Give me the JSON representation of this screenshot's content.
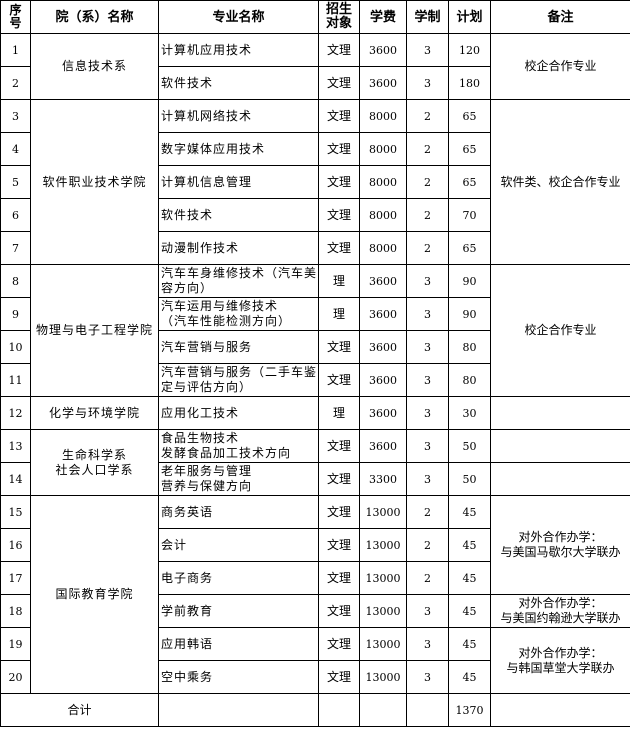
{
  "headers": [
    "序号",
    "院（系）名称",
    "专业名称",
    "招生对象",
    "学费",
    "学制",
    "计划",
    "备注"
  ],
  "departments": [
    {
      "name": "信息技术系",
      "rows": 2
    },
    {
      "name": "软件职业技术学院",
      "rows": 5
    },
    {
      "name": "物理与电子工程学院",
      "rows": 4
    },
    {
      "name": "化学与环境学院",
      "rows": 1
    },
    {
      "name": "生命科学系\n社会人口学系",
      "rows": 2
    },
    {
      "name": "国际教育学院",
      "rows": 6
    }
  ],
  "remarks": [
    {
      "text": "校企合作专业",
      "rows": 2
    },
    {
      "text": "软件类、校企合作专业",
      "rows": 5
    },
    {
      "text": "校企合作专业",
      "rows": 4
    },
    {
      "text": "",
      "rows": 1
    },
    {
      "text": "",
      "rows": 1
    },
    {
      "text": "",
      "rows": 1
    },
    {
      "text": "对外合作办学：\n与美国马歇尔大学联办",
      "rows": 3
    },
    {
      "text": "对外合作办学：\n与美国约翰逊大学联办",
      "rows": 1
    },
    {
      "text": "对外合作办学：\n与韩国草堂大学联办",
      "rows": 2
    }
  ],
  "rows": [
    {
      "no": "1",
      "major": "计算机应用技术",
      "target": "文理",
      "fee": "3600",
      "years": "3",
      "plan": "120"
    },
    {
      "no": "2",
      "major": "软件技术",
      "target": "文理",
      "fee": "3600",
      "years": "3",
      "plan": "180"
    },
    {
      "no": "3",
      "major": "计算机网络技术",
      "target": "文理",
      "fee": "8000",
      "years": "2",
      "plan": "65"
    },
    {
      "no": "4",
      "major": "数字媒体应用技术",
      "target": "文理",
      "fee": "8000",
      "years": "2",
      "plan": "65"
    },
    {
      "no": "5",
      "major": "计算机信息管理",
      "target": "文理",
      "fee": "8000",
      "years": "2",
      "plan": "65"
    },
    {
      "no": "6",
      "major": "软件技术",
      "target": "文理",
      "fee": "8000",
      "years": "2",
      "plan": "70"
    },
    {
      "no": "7",
      "major": "动漫制作技术",
      "target": "文理",
      "fee": "8000",
      "years": "2",
      "plan": "65"
    },
    {
      "no": "8",
      "major": "汽车车身维修技术（汽车美容方向）",
      "target": "理",
      "fee": "3600",
      "years": "3",
      "plan": "90"
    },
    {
      "no": "9",
      "major": "汽车运用与维修技术\n（汽车性能检测方向）",
      "target": "理",
      "fee": "3600",
      "years": "3",
      "plan": "90"
    },
    {
      "no": "10",
      "major": "汽车营销与服务",
      "target": "文理",
      "fee": "3600",
      "years": "3",
      "plan": "80"
    },
    {
      "no": "11",
      "major": "汽车营销与服务（二手车鉴定与评估方向）",
      "target": "文理",
      "fee": "3600",
      "years": "3",
      "plan": "80"
    },
    {
      "no": "12",
      "major": "应用化工技术",
      "target": "理",
      "fee": "3600",
      "years": "3",
      "plan": "30"
    },
    {
      "no": "13",
      "major": "食品生物技术\n发酵食品加工技术方向",
      "target": "文理",
      "fee": "3600",
      "years": "3",
      "plan": "50"
    },
    {
      "no": "14",
      "major": "老年服务与管理\n营养与保健方向",
      "target": "文理",
      "fee": "3300",
      "years": "3",
      "plan": "50"
    },
    {
      "no": "15",
      "major": "商务英语",
      "target": "文理",
      "fee": "13000",
      "years": "2",
      "plan": "45"
    },
    {
      "no": "16",
      "major": "会计",
      "target": "文理",
      "fee": "13000",
      "years": "2",
      "plan": "45"
    },
    {
      "no": "17",
      "major": "电子商务",
      "target": "文理",
      "fee": "13000",
      "years": "2",
      "plan": "45"
    },
    {
      "no": "18",
      "major": "学前教育",
      "target": "文理",
      "fee": "13000",
      "years": "3",
      "plan": "45"
    },
    {
      "no": "19",
      "major": "应用韩语",
      "target": "文理",
      "fee": "13000",
      "years": "3",
      "plan": "45"
    },
    {
      "no": "20",
      "major": "空中乘务",
      "target": "文理",
      "fee": "13000",
      "years": "3",
      "plan": "45"
    }
  ],
  "total": {
    "label": "合计",
    "plan": "1370"
  }
}
